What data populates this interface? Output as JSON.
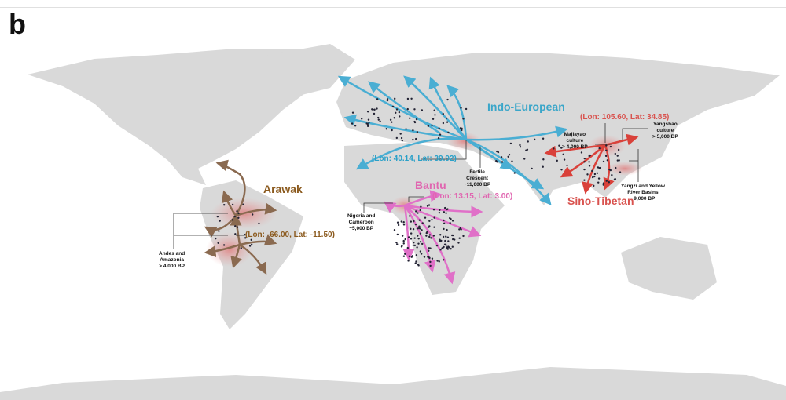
{
  "panel_label": "b",
  "colors": {
    "land": "#d9d9d9",
    "indo_european": "#4aaed3",
    "sino_tibetan": "#d9413a",
    "bantu": "#e070c8",
    "arawak": "#8a6a50",
    "arawak_label": "#8b5a1e",
    "origin_halo": "#e8a0a0"
  },
  "families": {
    "indo_european": {
      "name": "Indo-European",
      "coord": "(Lon: 40.14, Lat: 39.92)",
      "notes": [
        {
          "lines": [
            "Fertile",
            "Crescent",
            "~11,000 BP"
          ]
        }
      ]
    },
    "sino_tibetan": {
      "name": "Sino-Tibetan",
      "coord": "(Lon: 105.60, Lat: 34.85)",
      "notes": [
        {
          "lines": [
            "Majiayao",
            "culture",
            "> 4,000 BP"
          ]
        },
        {
          "lines": [
            "Yangshao",
            "culture",
            "> 5,000 BP"
          ]
        },
        {
          "lines": [
            "Yangzi and Yellow",
            "River Basins",
            "~9,000 BP"
          ]
        }
      ]
    },
    "bantu": {
      "name": "Bantu",
      "coord": "(Lon: 13.15, Lat: 3.00)",
      "notes": [
        {
          "lines": [
            "Nigeria and",
            "Cameroon",
            "~5,000 BP"
          ]
        }
      ]
    },
    "arawak": {
      "name": "Arawak",
      "coord": "(Lon: -66.00, Lat: -11.50)",
      "notes": [
        {
          "lines": [
            "Andes and",
            "Amazonia",
            "> 4,000 BP"
          ]
        }
      ]
    }
  }
}
